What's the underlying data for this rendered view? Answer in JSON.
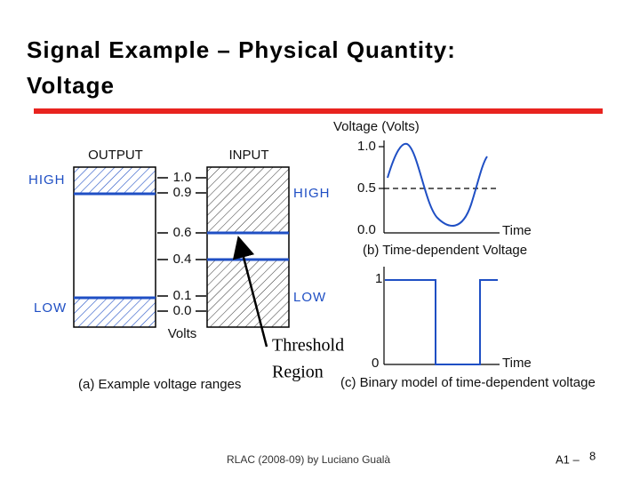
{
  "header": {
    "title_line1": "Signal Example – Physical Quantity:",
    "title_line2": "Voltage"
  },
  "figure_a": {
    "output_label": "OUTPUT",
    "input_label": "INPUT",
    "output_high": "HIGH",
    "output_low": "LOW",
    "input_high": "HIGH",
    "input_low": "LOW",
    "scale": [
      "1.0",
      "0.9",
      "0.6",
      "0.4",
      "0.1",
      "0.0"
    ],
    "unit": "Volts",
    "caption": "(a) Example voltage ranges"
  },
  "annotation": {
    "line1": "Threshold",
    "line2": "Region"
  },
  "figure_b": {
    "y_label": "Voltage (Volts)",
    "ticks": [
      "1.0",
      "0.5",
      "0.0"
    ],
    "x_label": "Time",
    "caption": "(b) Time-dependent Voltage"
  },
  "figure_c": {
    "ticks": [
      "1",
      "0"
    ],
    "x_label": "Time",
    "caption": "(c) Binary model of time-dependent voltage"
  },
  "footer": {
    "credit": "RLAC (2008-09) by Luciano Gualà",
    "section": "A1 –",
    "page": "8"
  }
}
